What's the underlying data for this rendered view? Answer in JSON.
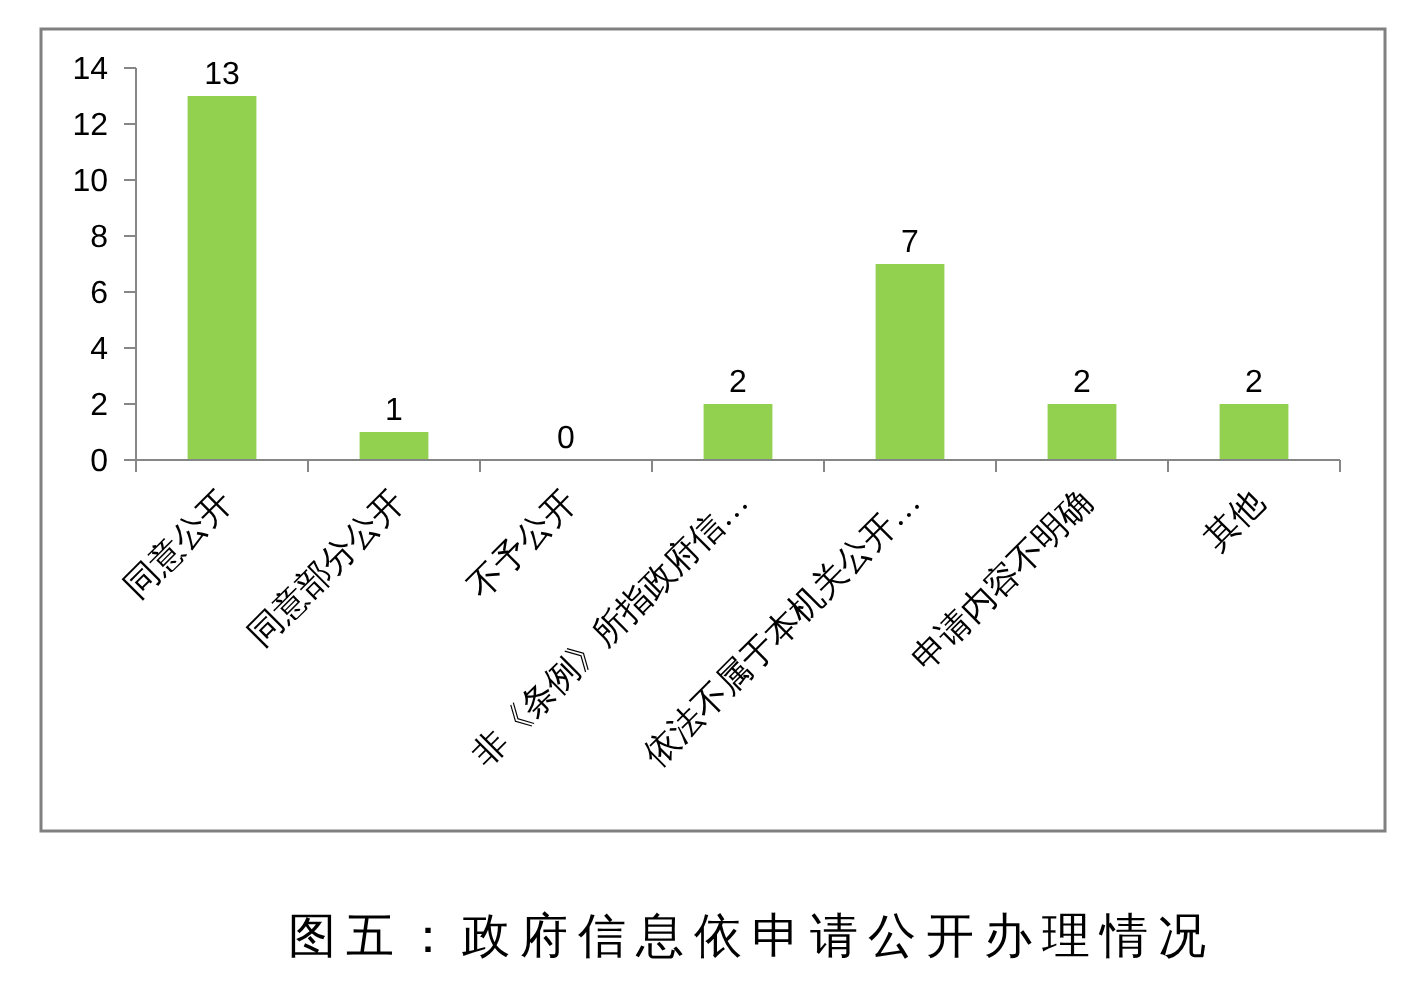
{
  "chart_data": {
    "type": "bar",
    "title": "图五：政府信息依申请公开办理情况",
    "categories": [
      "同意公开",
      "同意部分公开",
      "不予公开",
      "非《条例》所指政府信…",
      "依法不属于本机关公开…",
      "申请内容不明确",
      "其他"
    ],
    "values": [
      13,
      1,
      0,
      2,
      7,
      2,
      2
    ],
    "color": "#92d050",
    "ylim": [
      0,
      14
    ],
    "yticks": [
      0,
      2,
      4,
      6,
      8,
      10,
      12,
      14
    ],
    "data_labels": true
  }
}
